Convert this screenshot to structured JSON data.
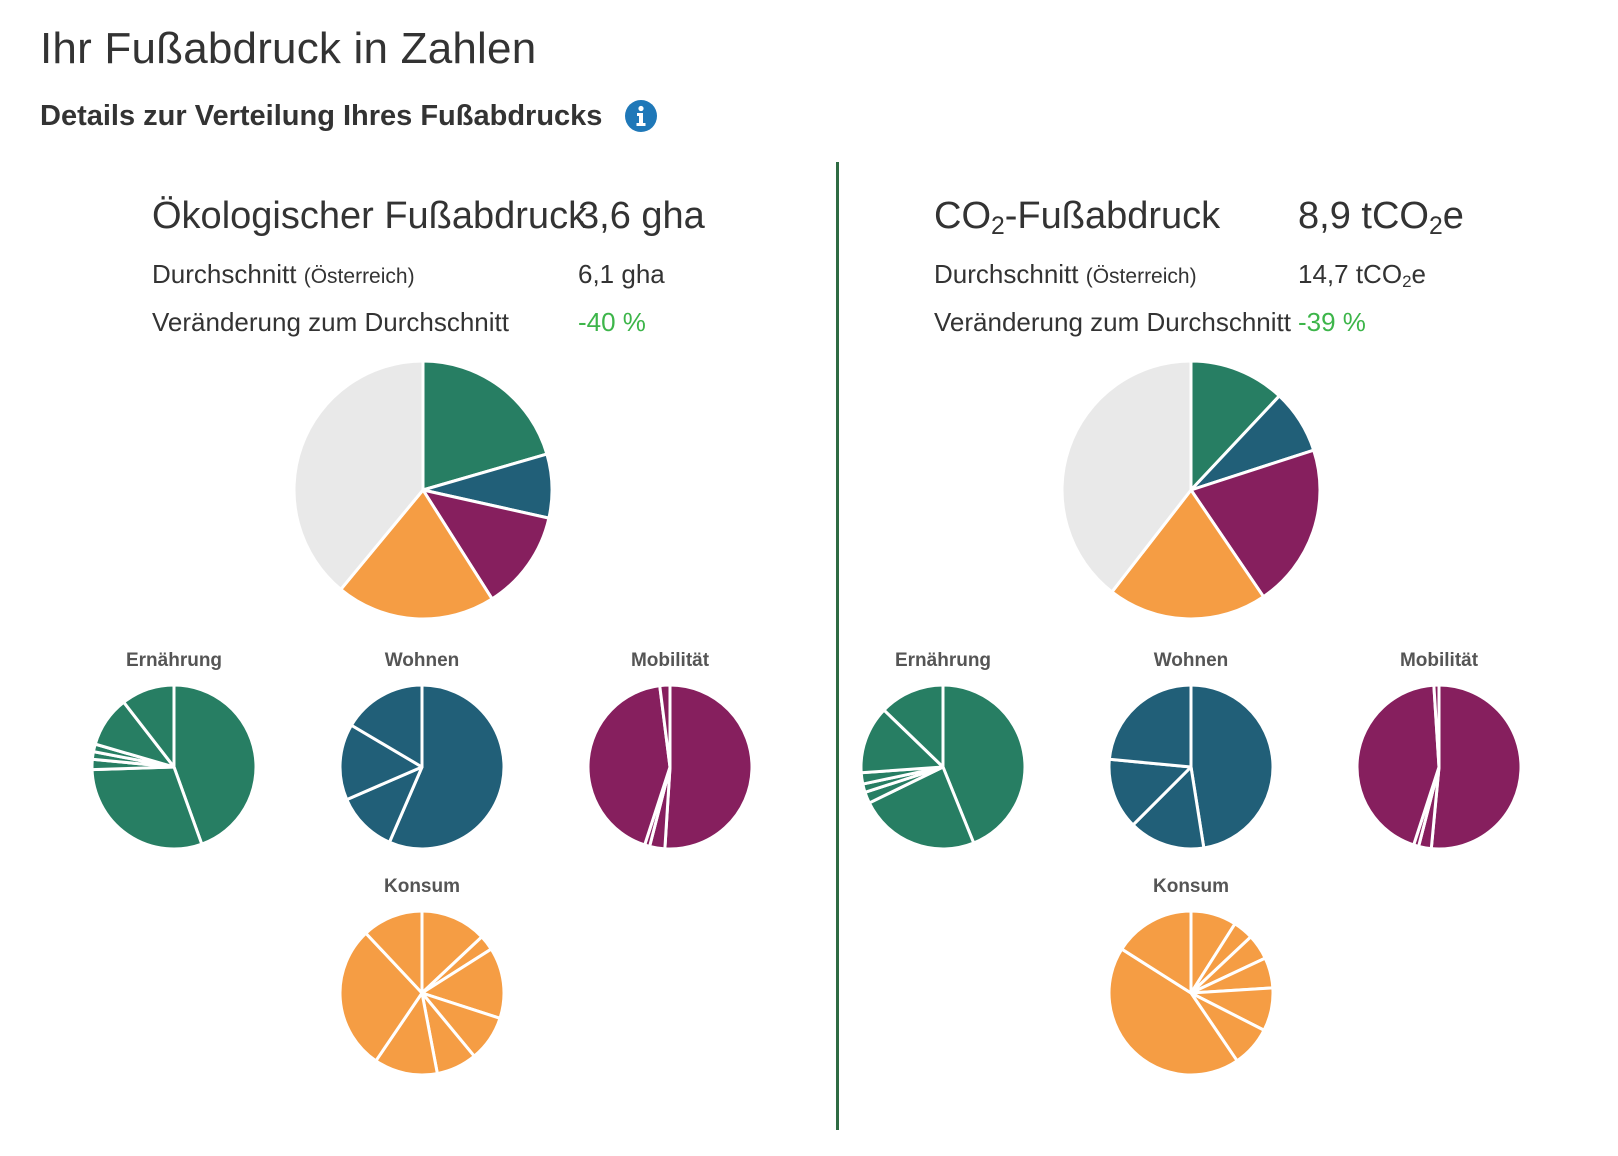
{
  "page": {
    "title": "Ihr Fußabdruck in Zahlen",
    "subtitle": "Details zur Verteilung Ihres Fußabdrucks",
    "info_icon": "info-circle-icon"
  },
  "colors": {
    "ernaehrung": "#277e63",
    "wohnen": "#215f78",
    "mobilitaet": "#861f5e",
    "konsum": "#f59d44",
    "rest": "#e9e9e9",
    "change": "#3db54a",
    "divider": "#2e6b43"
  },
  "eco": {
    "label": "Ökologischer Fußabdruck",
    "value": "3,6 gha",
    "avg_label": "Durchschnitt",
    "avg_country": "(Österreich)",
    "avg_value": "6,1 gha",
    "change_label": "Veränderung zum Durchschnitt",
    "change_value": "-40 %"
  },
  "co2": {
    "label_pre": "CO",
    "label_sub": "2",
    "label_post": "-Fußabdruck",
    "value_pre": "8,9 tCO",
    "value_sub": "2",
    "value_post": "e",
    "avg_label": "Durchschnitt",
    "avg_country": "(Österreich)",
    "avg_value_pre": "14,7 tCO",
    "avg_value_sub": "2",
    "avg_value_post": "e",
    "change_label": "Veränderung zum Durchschnitt",
    "change_value": "-39 %"
  },
  "labels": {
    "ernaehrung": "Ernährung",
    "wohnen": "Wohnen",
    "mobilitaet": "Mobilität",
    "konsum": "Konsum"
  },
  "chart_data": [
    {
      "id": "eco-main",
      "type": "pie",
      "categories": [
        "Ernährung",
        "Wohnen",
        "Mobilität",
        "Konsum",
        "Rest"
      ],
      "values": [
        20.5,
        8.0,
        12.5,
        20.0,
        39.0
      ]
    },
    {
      "id": "co2-main",
      "type": "pie",
      "categories": [
        "Ernährung",
        "Wohnen",
        "Mobilität",
        "Konsum",
        "Rest"
      ],
      "values": [
        12.0,
        8.0,
        20.5,
        20.0,
        39.5
      ]
    },
    {
      "id": "eco-ernaehrung",
      "type": "pie",
      "color": "ernaehrung",
      "values": [
        44.5,
        30.0,
        2.0,
        1.5,
        1.5,
        10.0,
        10.5
      ]
    },
    {
      "id": "eco-wohnen",
      "type": "pie",
      "color": "wohnen",
      "values": [
        56.5,
        12.0,
        15.0,
        16.5
      ]
    },
    {
      "id": "eco-mobilitaet",
      "type": "pie",
      "color": "mobilitaet",
      "values": [
        51.0,
        3.0,
        1.0,
        43.0,
        2.0
      ]
    },
    {
      "id": "eco-konsum",
      "type": "pie",
      "color": "konsum",
      "values": [
        13.0,
        3.0,
        14.0,
        9.0,
        8.0,
        12.5,
        28.5,
        12.0
      ]
    },
    {
      "id": "co2-ernaehrung",
      "type": "pie",
      "color": "ernaehrung",
      "values": [
        39.5,
        21.5,
        2.0,
        1.5,
        2.0,
        12.0,
        11.5
      ]
    },
    {
      "id": "co2-wohnen",
      "type": "pie",
      "color": "wohnen",
      "values": [
        47.5,
        15.0,
        14.0,
        23.5
      ]
    },
    {
      "id": "co2-mobilitaet",
      "type": "pie",
      "color": "mobilitaet",
      "values": [
        51.5,
        2.5,
        1.0,
        44.0,
        1.0
      ]
    },
    {
      "id": "co2-konsum",
      "type": "pie",
      "color": "konsum",
      "values": [
        9.0,
        4.0,
        5.0,
        6.0,
        8.5,
        8.0,
        43.5,
        16.0
      ]
    }
  ]
}
